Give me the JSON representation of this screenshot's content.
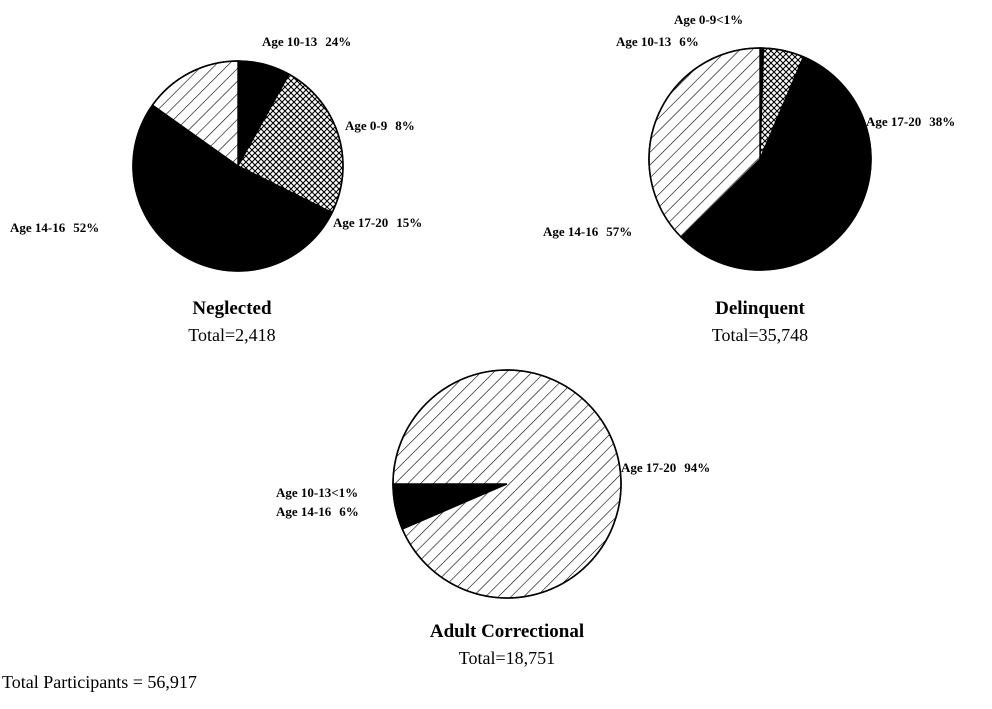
{
  "footer": "Total Participants = 56,917",
  "colors": {
    "ink": "#000000",
    "paper": "#ffffff"
  },
  "chart_data": [
    {
      "type": "pie",
      "title": "Neglected",
      "total_label": "Total=2,418",
      "slices": [
        {
          "label": "Age 0-9",
          "pct_label": "8%",
          "value": 8,
          "pattern": "solid"
        },
        {
          "label": "Age 10-13",
          "pct_label": "24%",
          "value": 24,
          "pattern": "crosshatch"
        },
        {
          "label": "Age 14-16",
          "pct_label": "52%",
          "value": 52,
          "pattern": "solid"
        },
        {
          "label": "Age 17-20",
          "pct_label": "15%",
          "value": 15,
          "pattern": "diagonal"
        }
      ]
    },
    {
      "type": "pie",
      "title": "Delinquent",
      "total_label": "Total=35,748",
      "slices": [
        {
          "label": "Age 0-9",
          "pct_label": "<1%",
          "value": 0.5,
          "pattern": "solid"
        },
        {
          "label": "Age 10-13",
          "pct_label": "6%",
          "value": 6,
          "pattern": "crosshatch"
        },
        {
          "label": "Age 14-16",
          "pct_label": "57%",
          "value": 57,
          "pattern": "solid"
        },
        {
          "label": "Age 17-20",
          "pct_label": "38%",
          "value": 38,
          "pattern": "diagonal"
        }
      ]
    },
    {
      "type": "pie",
      "title": "Adult Correctional",
      "total_label": "Total=18,751",
      "slices": [
        {
          "label": "Age 10-13",
          "pct_label": "<1%",
          "value": 0.5,
          "pattern": "solid"
        },
        {
          "label": "Age 14-16",
          "pct_label": "6%",
          "value": 6,
          "pattern": "solid"
        },
        {
          "label": "Age 17-20",
          "pct_label": "94%",
          "value": 94,
          "pattern": "diagonal"
        }
      ]
    }
  ]
}
